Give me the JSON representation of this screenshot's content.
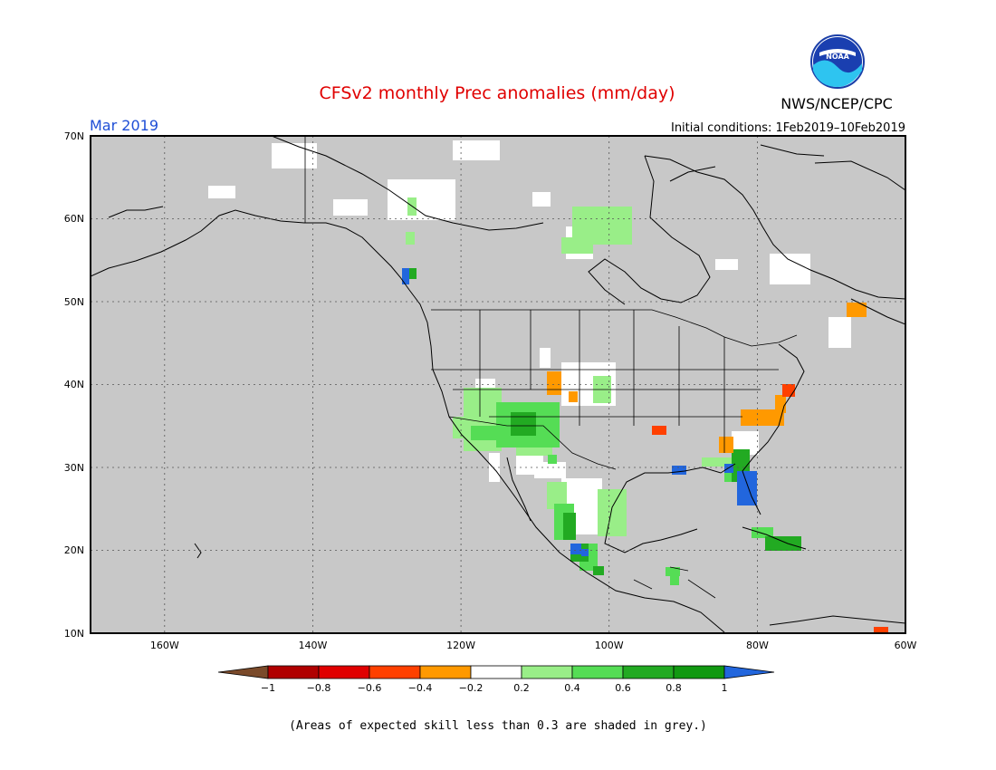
{
  "header": {
    "title": "CFSv2 monthly Prec anomalies (mm/day)",
    "agency": "NWS/NCEP/CPC",
    "logo_text": "NOAA",
    "valid_month": "Mar 2019",
    "initial_conditions": "Initial conditions: 1Feb2019–10Feb2019"
  },
  "map": {
    "lon_range": [
      -170,
      -60
    ],
    "lat_range": [
      10,
      70
    ],
    "lat_ticks": [
      {
        "value": 70,
        "label": "70N"
      },
      {
        "value": 60,
        "label": "60N"
      },
      {
        "value": 50,
        "label": "50N"
      },
      {
        "value": 40,
        "label": "40N"
      },
      {
        "value": 30,
        "label": "30N"
      },
      {
        "value": 20,
        "label": "20N"
      },
      {
        "value": 10,
        "label": "10N"
      }
    ],
    "lon_ticks": [
      {
        "value": -160,
        "label": "160W"
      },
      {
        "value": -140,
        "label": "140W"
      },
      {
        "value": -120,
        "label": "120W"
      },
      {
        "value": -100,
        "label": "100W"
      },
      {
        "value": -80,
        "label": "80W"
      },
      {
        "value": -60,
        "label": "60W"
      }
    ],
    "grid": true,
    "mask_color": "#c8c8c8"
  },
  "colorbar": {
    "labels": [
      "−1",
      "−0.8",
      "−0.6",
      "−0.4",
      "−0.2",
      "0.2",
      "0.4",
      "0.6",
      "0.8",
      "1"
    ],
    "colors": [
      "#7a4a2a",
      "#b00000",
      "#e00000",
      "#ff4000",
      "#ff9900",
      "#ffffff",
      "#99ee88",
      "#55dd55",
      "#22aa22",
      "#119911",
      "#2266dd"
    ]
  },
  "footnote": "(Areas of expected skill less than 0.3 are shaded in grey.)"
}
